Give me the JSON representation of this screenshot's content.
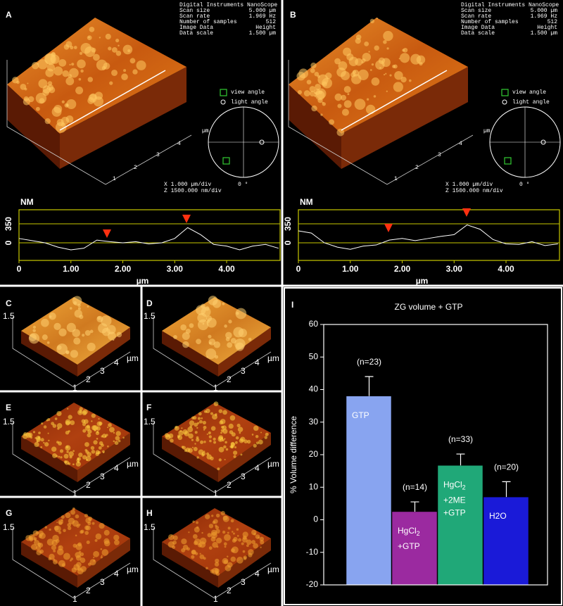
{
  "panels": {
    "labels": [
      "A",
      "B",
      "C",
      "D",
      "E",
      "F",
      "G",
      "H",
      "I"
    ]
  },
  "nanoscope": {
    "header": "Digital Instruments NanoScope",
    "info": [
      [
        "Scan size",
        "5.000 µm"
      ],
      [
        "Scan rate",
        "1.969 Hz"
      ],
      [
        "Number of samples",
        "512"
      ],
      [
        "Image Data",
        "Height"
      ],
      [
        "Data scale",
        "1.500 µm"
      ]
    ],
    "view_angle": "view angle",
    "light_angle": "light angle",
    "x_scale": "X  1.000 µm/div",
    "z_scale": "Z  1500.000 nm/div",
    "angle": "0 °",
    "axis_ticks": [
      "1",
      "2",
      "3",
      "4"
    ],
    "axis_unit": "µm"
  },
  "small_axes": {
    "z": "1.5",
    "unit": "µm",
    "ticks": [
      "1",
      "2",
      "3",
      "4"
    ]
  },
  "chart_data": [
    {
      "type": "line",
      "y_label": "NM",
      "x_label": "µm",
      "x": [
        0,
        0.25,
        0.5,
        0.75,
        1.0,
        1.25,
        1.5,
        1.75,
        2.0,
        2.25,
        2.5,
        2.75,
        3.0,
        3.25,
        3.5,
        3.75,
        4.0,
        4.25,
        4.5,
        4.75,
        5.0
      ],
      "series": [
        {
          "color": "#ffffff",
          "values": [
            80,
            40,
            0,
            -80,
            -130,
            -100,
            50,
            20,
            0,
            20,
            -20,
            0,
            80,
            280,
            150,
            -30,
            -60,
            -130,
            -60,
            -30,
            -100
          ]
        }
      ],
      "xlim": [
        0,
        5.03
      ],
      "ylim": [
        -325,
        610
      ],
      "xticks": [
        0,
        {
          "value": 1,
          "label": "1.00"
        },
        {
          "value": 2,
          "label": "2.00"
        },
        {
          "value": 3,
          "label": "3.00"
        },
        {
          "value": 4,
          "label": "4.00"
        }
      ],
      "yticks": [
        0,
        350
      ]
    },
    {
      "type": "line",
      "y_label": "NM",
      "x_label": "µm",
      "x": [
        0,
        0.25,
        0.5,
        0.75,
        1.0,
        1.25,
        1.5,
        1.75,
        2.0,
        2.25,
        2.5,
        2.75,
        3.0,
        3.25,
        3.5,
        3.75,
        4.0,
        4.25,
        4.5,
        4.75,
        5.0
      ],
      "series": [
        {
          "color": "#ffffff",
          "values": [
            220,
            180,
            0,
            -80,
            -120,
            -60,
            -40,
            50,
            80,
            40,
            80,
            120,
            150,
            330,
            250,
            60,
            -20,
            -30,
            20,
            -50,
            -20
          ]
        }
      ],
      "xlim": [
        0,
        5.03
      ],
      "ylim": [
        -325,
        610
      ],
      "xticks": [
        0,
        {
          "value": 1,
          "label": "1.00"
        },
        {
          "value": 2,
          "label": "2.00"
        },
        {
          "value": 3,
          "label": "3.00"
        },
        {
          "value": 4,
          "label": "4.00"
        }
      ],
      "yticks": [
        0,
        350
      ]
    },
    {
      "type": "bar",
      "title": "ZG volume + GTP",
      "y_label": "% Volume difference",
      "categories": [
        "GTP",
        "HgCl2 +GTP",
        "HgCl2 +2ME +GTP",
        "H2O"
      ],
      "values": [
        38,
        2.5,
        16.7,
        7
      ],
      "errors": [
        6,
        3,
        3.5,
        4.7
      ],
      "n_labels": [
        "(n=23)",
        "(n=14)",
        "(n=33)",
        "(n=20)"
      ],
      "colors": [
        "#88a4f0",
        "#9b2aa0",
        "#20a878",
        "#1a1ad8"
      ],
      "ylim": [
        -20,
        60
      ],
      "yticks": [
        -20,
        -10,
        0,
        10,
        20,
        30,
        40,
        50,
        60
      ]
    }
  ]
}
